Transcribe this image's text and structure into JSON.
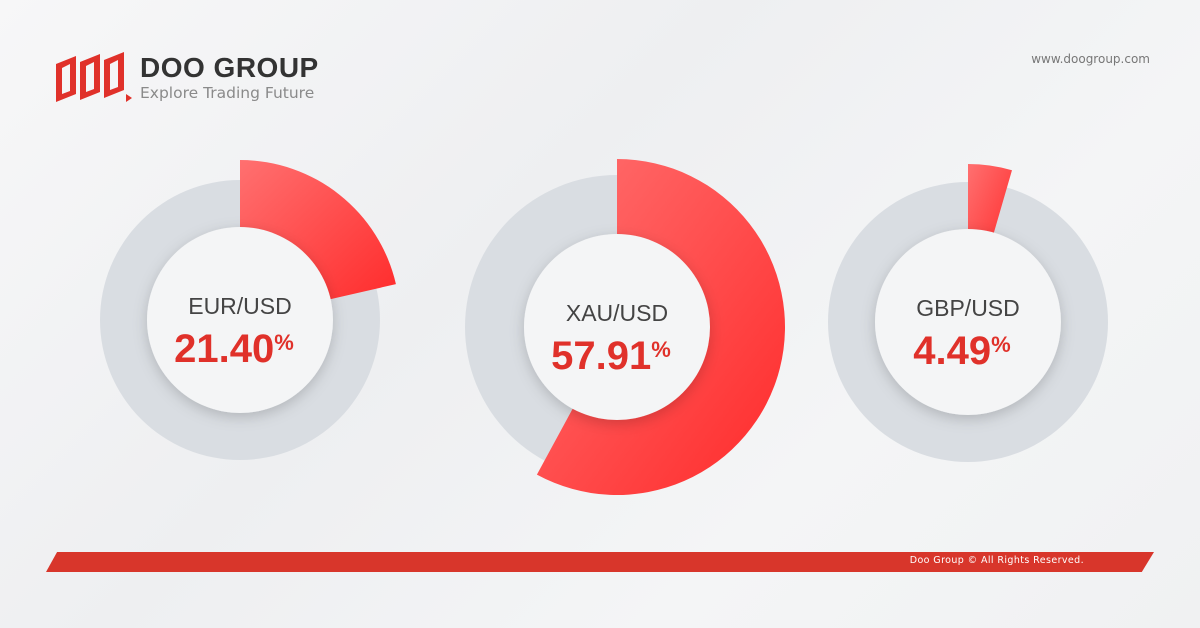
{
  "header": {
    "brand_name": "DOO GROUP",
    "tagline": "Explore Trading Future",
    "url": "www.doogroup.com"
  },
  "chart_data": {
    "type": "pie",
    "variant": "donut",
    "series": [
      {
        "name": "EUR/USD",
        "value": 21.4,
        "label": "21.40%"
      },
      {
        "name": "XAU/USD",
        "value": 57.91,
        "label": "57.91%"
      },
      {
        "name": "GBP/USD",
        "value": 4.49,
        "label": "4.49%"
      }
    ],
    "range": [
      0,
      100
    ],
    "colors": {
      "fill": "#ff3030",
      "track": "#d9dde2",
      "value_text": "#e0312a",
      "name_text": "#444444"
    }
  },
  "footer": {
    "copyright": "Doo Group © All Rights Reserved."
  }
}
